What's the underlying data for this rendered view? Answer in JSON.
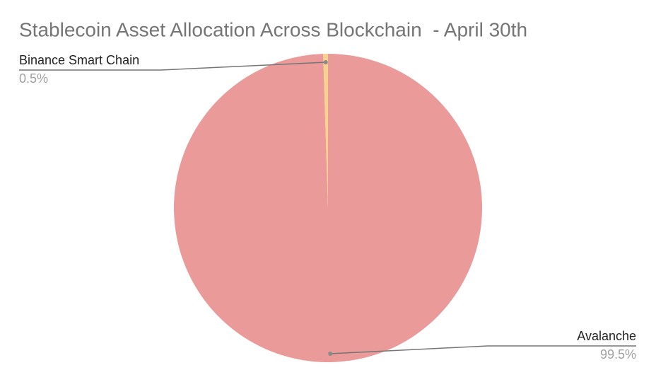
{
  "chart_data": {
    "type": "pie",
    "title": "Stablecoin Asset Allocation Across Blockchain  - April 30th",
    "categories": [
      "Avalanche",
      "Binance Smart Chain"
    ],
    "values": [
      99.5,
      0.5
    ],
    "value_labels": [
      "99.5%",
      "0.5%"
    ],
    "colors": [
      "#e99a99",
      "#f6d28f"
    ]
  }
}
